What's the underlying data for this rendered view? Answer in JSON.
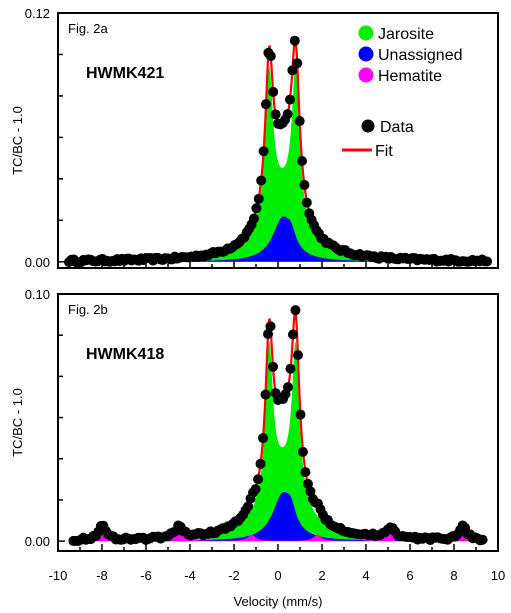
{
  "figure": {
    "xlabel": "Velocity  (mm/s)",
    "x_ticks": [
      "-10",
      "-8",
      "-6",
      "-4",
      "-2",
      "0",
      "2",
      "4",
      "6",
      "8",
      "10"
    ]
  },
  "colors": {
    "jarosite": "#00ee00",
    "unassigned": "#0000ff",
    "hematite": "#ff00ff",
    "fit": "#ff0000",
    "data": "#000000",
    "axis": "#000000"
  },
  "chart_data": [
    {
      "type": "scatter",
      "panel_label": "Fig. 2a",
      "sample": "HWMK421",
      "ylabel": "TC/BC - 1.0",
      "y_tick_labels": [
        "0.12",
        "0.00"
      ],
      "xlim": [
        -10,
        10
      ],
      "ylim": [
        -0.003,
        0.12
      ],
      "legend": {
        "placement": "top-right",
        "items": [
          "Jarosite",
          "Unassigned",
          "Hematite",
          "Data",
          "Fit"
        ]
      },
      "components": {
        "jarosite": {
          "lines": [
            {
              "center": -0.4,
              "height": 0.07,
              "hwhm": 0.21
            },
            {
              "center": 0.8,
              "height": 0.07,
              "hwhm": 0.21
            }
          ],
          "broad": {
            "center": 0.2,
            "height": 0.03,
            "hwhm": 1.0
          }
        },
        "unassigned": {
          "lines": [
            {
              "center": 0.2,
              "height": 0.02,
              "hwhm": 0.55
            },
            {
              "center": 0.6,
              "height": 0.006,
              "hwhm": 0.25
            }
          ]
        },
        "hematite": {
          "lines": []
        }
      },
      "data_points": {
        "count": 175,
        "x_range": [
          -9.5,
          9.5
        ]
      }
    },
    {
      "type": "scatter",
      "panel_label": "Fig. 2b",
      "sample": "HWMK418",
      "ylabel": "TC/BC - 1.0",
      "y_tick_labels": [
        "0.10",
        "0.00"
      ],
      "xlim": [
        -10,
        10
      ],
      "ylim": [
        -0.004,
        0.1
      ],
      "legend": {
        "items": []
      },
      "components": {
        "jarosite": {
          "lines": [
            {
              "center": -0.4,
              "height": 0.06,
              "hwhm": 0.2
            },
            {
              "center": 0.8,
              "height": 0.06,
              "hwhm": 0.2
            }
          ],
          "broad": {
            "center": 0.2,
            "height": 0.026,
            "hwhm": 1.0
          }
        },
        "unassigned": {
          "lines": [
            {
              "center": 0.2,
              "height": 0.018,
              "hwhm": 0.55
            },
            {
              "center": 0.6,
              "height": 0.006,
              "hwhm": 0.25
            }
          ]
        },
        "hematite": {
          "lines": [
            {
              "center": -8.0,
              "height": 0.0055,
              "hwhm": 0.22
            },
            {
              "center": -4.5,
              "height": 0.0045,
              "hwhm": 0.22
            },
            {
              "center": -1.2,
              "height": 0.0025,
              "hwhm": 0.22
            },
            {
              "center": 1.8,
              "height": 0.0025,
              "hwhm": 0.22
            },
            {
              "center": 5.1,
              "height": 0.0045,
              "hwhm": 0.22
            },
            {
              "center": 8.4,
              "height": 0.0055,
              "hwhm": 0.22
            }
          ]
        }
      },
      "data_points": {
        "count": 165,
        "x_range": [
          -9.3,
          9.3
        ]
      }
    }
  ]
}
